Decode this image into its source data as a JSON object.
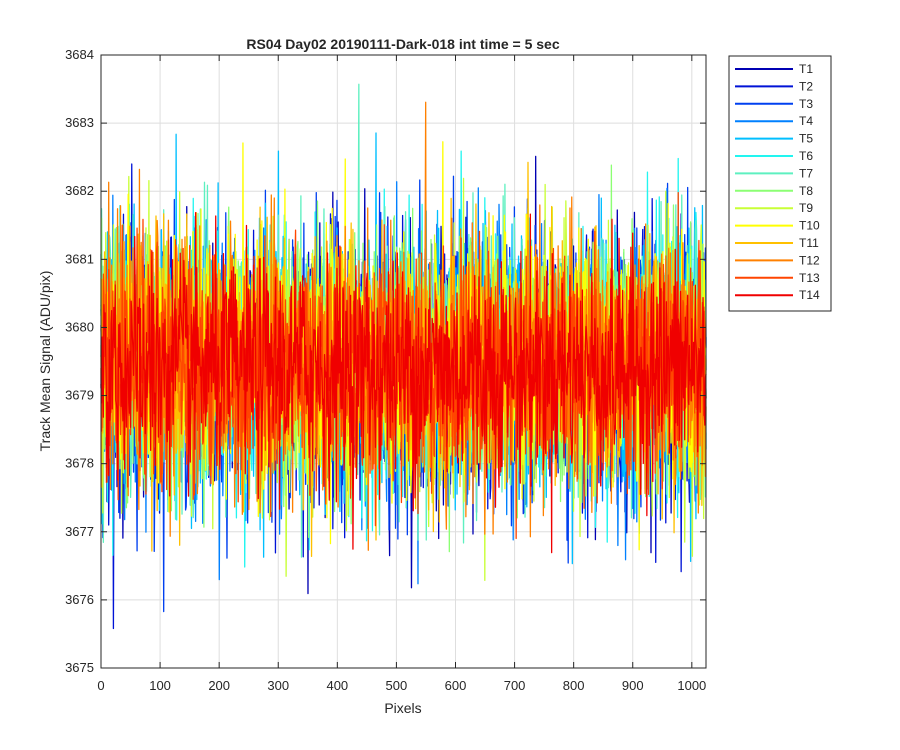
{
  "chart_data": {
    "type": "line",
    "title": "RS04 Day02 20190111-Dark-018 int time = 5 sec",
    "xlabel": "Pixels",
    "ylabel": "Track Mean Signal (ADU/pix)",
    "xlim": [
      0,
      1024
    ],
    "ylim": [
      3675,
      3684
    ],
    "xticks": [
      0,
      100,
      200,
      300,
      400,
      500,
      600,
      700,
      800,
      900,
      1000
    ],
    "yticks": [
      3675,
      3676,
      3677,
      3678,
      3679,
      3680,
      3681,
      3682,
      3683,
      3684
    ],
    "xtick_labels": [
      "0",
      "100",
      "200",
      "300",
      "400",
      "500",
      "600",
      "700",
      "800",
      "900",
      "1000"
    ],
    "ytick_labels": [
      "3675",
      "3676",
      "3677",
      "3678",
      "3679",
      "3680",
      "3681",
      "3682",
      "3683",
      "3684"
    ],
    "grid": true,
    "legend_position": "outside-top-right",
    "n_points": 1024,
    "series": [
      {
        "name": "T1",
        "color": "#0000b3",
        "mean": 3679.4,
        "spread": 0.95
      },
      {
        "name": "T2",
        "color": "#0013d6",
        "mean": 3679.4,
        "spread": 0.95
      },
      {
        "name": "T3",
        "color": "#0040f0",
        "mean": 3679.4,
        "spread": 0.95
      },
      {
        "name": "T4",
        "color": "#0080ff",
        "mean": 3679.45,
        "spread": 0.95
      },
      {
        "name": "T5",
        "color": "#00bfff",
        "mean": 3679.45,
        "spread": 0.95
      },
      {
        "name": "T6",
        "color": "#22f5f0",
        "mean": 3679.45,
        "spread": 0.95
      },
      {
        "name": "T7",
        "color": "#5ef0c0",
        "mean": 3679.5,
        "spread": 0.95
      },
      {
        "name": "T8",
        "color": "#8cff73",
        "mean": 3679.5,
        "spread": 0.95
      },
      {
        "name": "T9",
        "color": "#c8ff36",
        "mean": 3679.5,
        "spread": 0.95
      },
      {
        "name": "T10",
        "color": "#ffff00",
        "mean": 3679.5,
        "spread": 0.9
      },
      {
        "name": "T11",
        "color": "#ffc000",
        "mean": 3679.45,
        "spread": 0.9
      },
      {
        "name": "T12",
        "color": "#ff8000",
        "mean": 3679.45,
        "spread": 0.9
      },
      {
        "name": "T13",
        "color": "#ff4500",
        "mean": 3679.4,
        "spread": 0.85
      },
      {
        "name": "T14",
        "color": "#f00000",
        "mean": 3679.4,
        "spread": 0.8
      }
    ]
  }
}
